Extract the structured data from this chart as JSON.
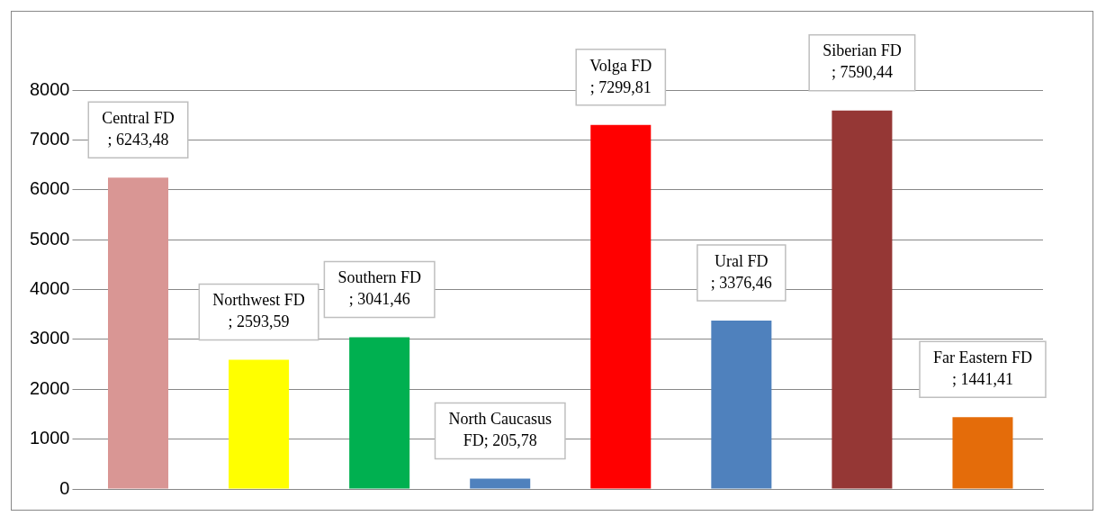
{
  "chart_data": {
    "type": "bar",
    "categories": [
      "Central FD",
      "Northwest FD",
      "Southern FD",
      "North Caucasus FD",
      "Volga FD",
      "Ural FD",
      "Siberian FD",
      "Far Eastern FD"
    ],
    "values": [
      6243.48,
      2593.59,
      3041.46,
      205.78,
      7299.81,
      3376.46,
      7590.44,
      1441.41
    ],
    "colors": [
      "#d99694",
      "#ffff00",
      "#00b050",
      "#4f81bd",
      "#ff0000",
      "#4f81bd",
      "#953735",
      "#e46c0a"
    ],
    "value_labels": [
      "; 6243,48",
      "; 2593,59",
      "; 3041,46",
      "; 205,78",
      "; 7299,81",
      "; 3376,46",
      "; 7590,44",
      "; 1441,41"
    ],
    "ylim": [
      0,
      8000
    ],
    "yticks": [
      0,
      1000,
      2000,
      3000,
      4000,
      5000,
      6000,
      7000,
      8000
    ],
    "grid": "y",
    "legend": false,
    "tick_labels": "y"
  }
}
